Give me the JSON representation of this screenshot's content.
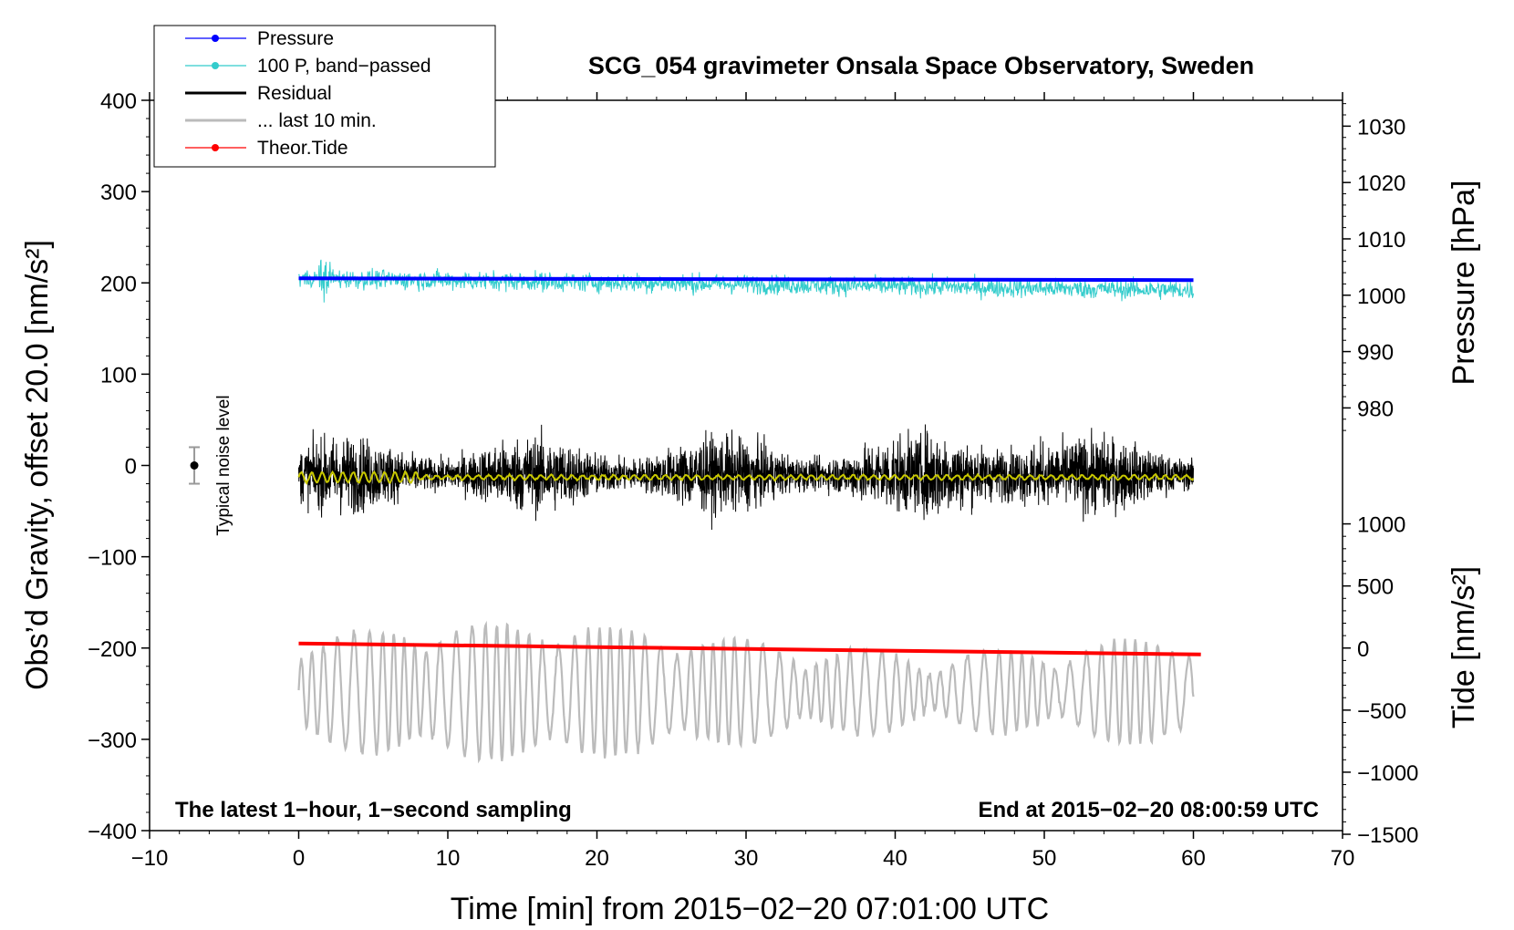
{
  "chart_data": {
    "type": "line",
    "title": "SCG_054 gravimeter Onsala Space Observatory, Sweden",
    "xlabel": "Time [min] from 2015−02−20 07:01:00 UTC",
    "ylabel_left": "Obs’d Gravity, offset 20.0 [nm/s²]",
    "ylabel_right_top": "Pressure [hPa]",
    "ylabel_right_bottom": "Tide [nm/s²]",
    "xlim": [
      -10,
      70
    ],
    "ylim_left": [
      -400,
      400
    ],
    "x_ticks": [
      "−10",
      "0",
      "10",
      "20",
      "30",
      "40",
      "50",
      "60",
      "70"
    ],
    "y_left_ticks": [
      "400",
      "300",
      "200",
      "100",
      "0",
      "−100",
      "−200",
      "−300",
      "−400"
    ],
    "pressure_ticks": [
      "1030",
      "1020",
      "1010",
      "1000",
      "990",
      "980"
    ],
    "tide_ticks": [
      "1000",
      "500",
      "0",
      "−500",
      "−1000",
      "−1500"
    ],
    "grid": false,
    "legend_position": "top-left",
    "legend": [
      {
        "label": "Pressure",
        "color": "#0000ff",
        "marker": true
      },
      {
        "label": "100 P, band−passed",
        "color": "#33cccc",
        "marker": true
      },
      {
        "label": "Residual",
        "color": "#000000",
        "marker": false
      },
      {
        "label": "... last 10 min.",
        "color": "#bbbbbb",
        "marker": false
      },
      {
        "label": "Theor.Tide",
        "color": "#ff0000",
        "marker": true
      }
    ],
    "series": [
      {
        "name": "Pressure",
        "axis": "left",
        "x": [
          0,
          60
        ],
        "values": [
          205,
          203
        ],
        "color": "#0000ff"
      },
      {
        "name": "100 P, band−passed",
        "axis": "left",
        "x_range": [
          0,
          60
        ],
        "center": [
          205,
          192
        ],
        "amplitude": 18,
        "color": "#33cccc"
      },
      {
        "name": "Residual",
        "axis": "left",
        "x_range": [
          0,
          60
        ],
        "center": -10,
        "amplitude": 70,
        "color": "#000000"
      },
      {
        "name": "Residual smoothed",
        "axis": "left",
        "x_range": [
          0,
          60
        ],
        "center": -13,
        "amplitude": 4,
        "color": "#c8c800"
      },
      {
        "name": "... last 10 min.",
        "axis": "left",
        "x_range": [
          0,
          60
        ],
        "center": -248,
        "amplitude": 60,
        "color": "#bbbbbb"
      },
      {
        "name": "Theor.Tide",
        "axis": "left",
        "x": [
          0,
          60.5
        ],
        "values": [
          -195,
          -207
        ],
        "color": "#ff0000"
      }
    ],
    "noise_level": {
      "label": "Typical noise level",
      "x": -7,
      "center": 0,
      "half_range": 20
    },
    "annotation_left": "The latest 1−hour, 1−second sampling",
    "annotation_right": "End at 2015−02−20 08:00:59 UTC"
  }
}
